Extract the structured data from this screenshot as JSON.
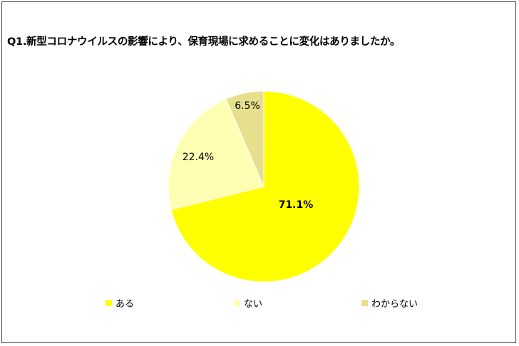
{
  "chart_data": {
    "type": "pie",
    "title": "Q1.新型コロナウイルスの影響により、保育現場に求めることに変化はありましたか。",
    "slices": [
      {
        "label": "ある",
        "value": 71.1,
        "display": "71.1%",
        "color": "#FFFF00",
        "bold": true
      },
      {
        "label": "ない",
        "value": 22.4,
        "display": "22.4%",
        "color": "#FFFFB3",
        "bold": false
      },
      {
        "label": "わからない",
        "value": 6.5,
        "display": "6.5%",
        "color": "#E6E08C",
        "bold": false
      }
    ],
    "legend_position": "bottom"
  }
}
